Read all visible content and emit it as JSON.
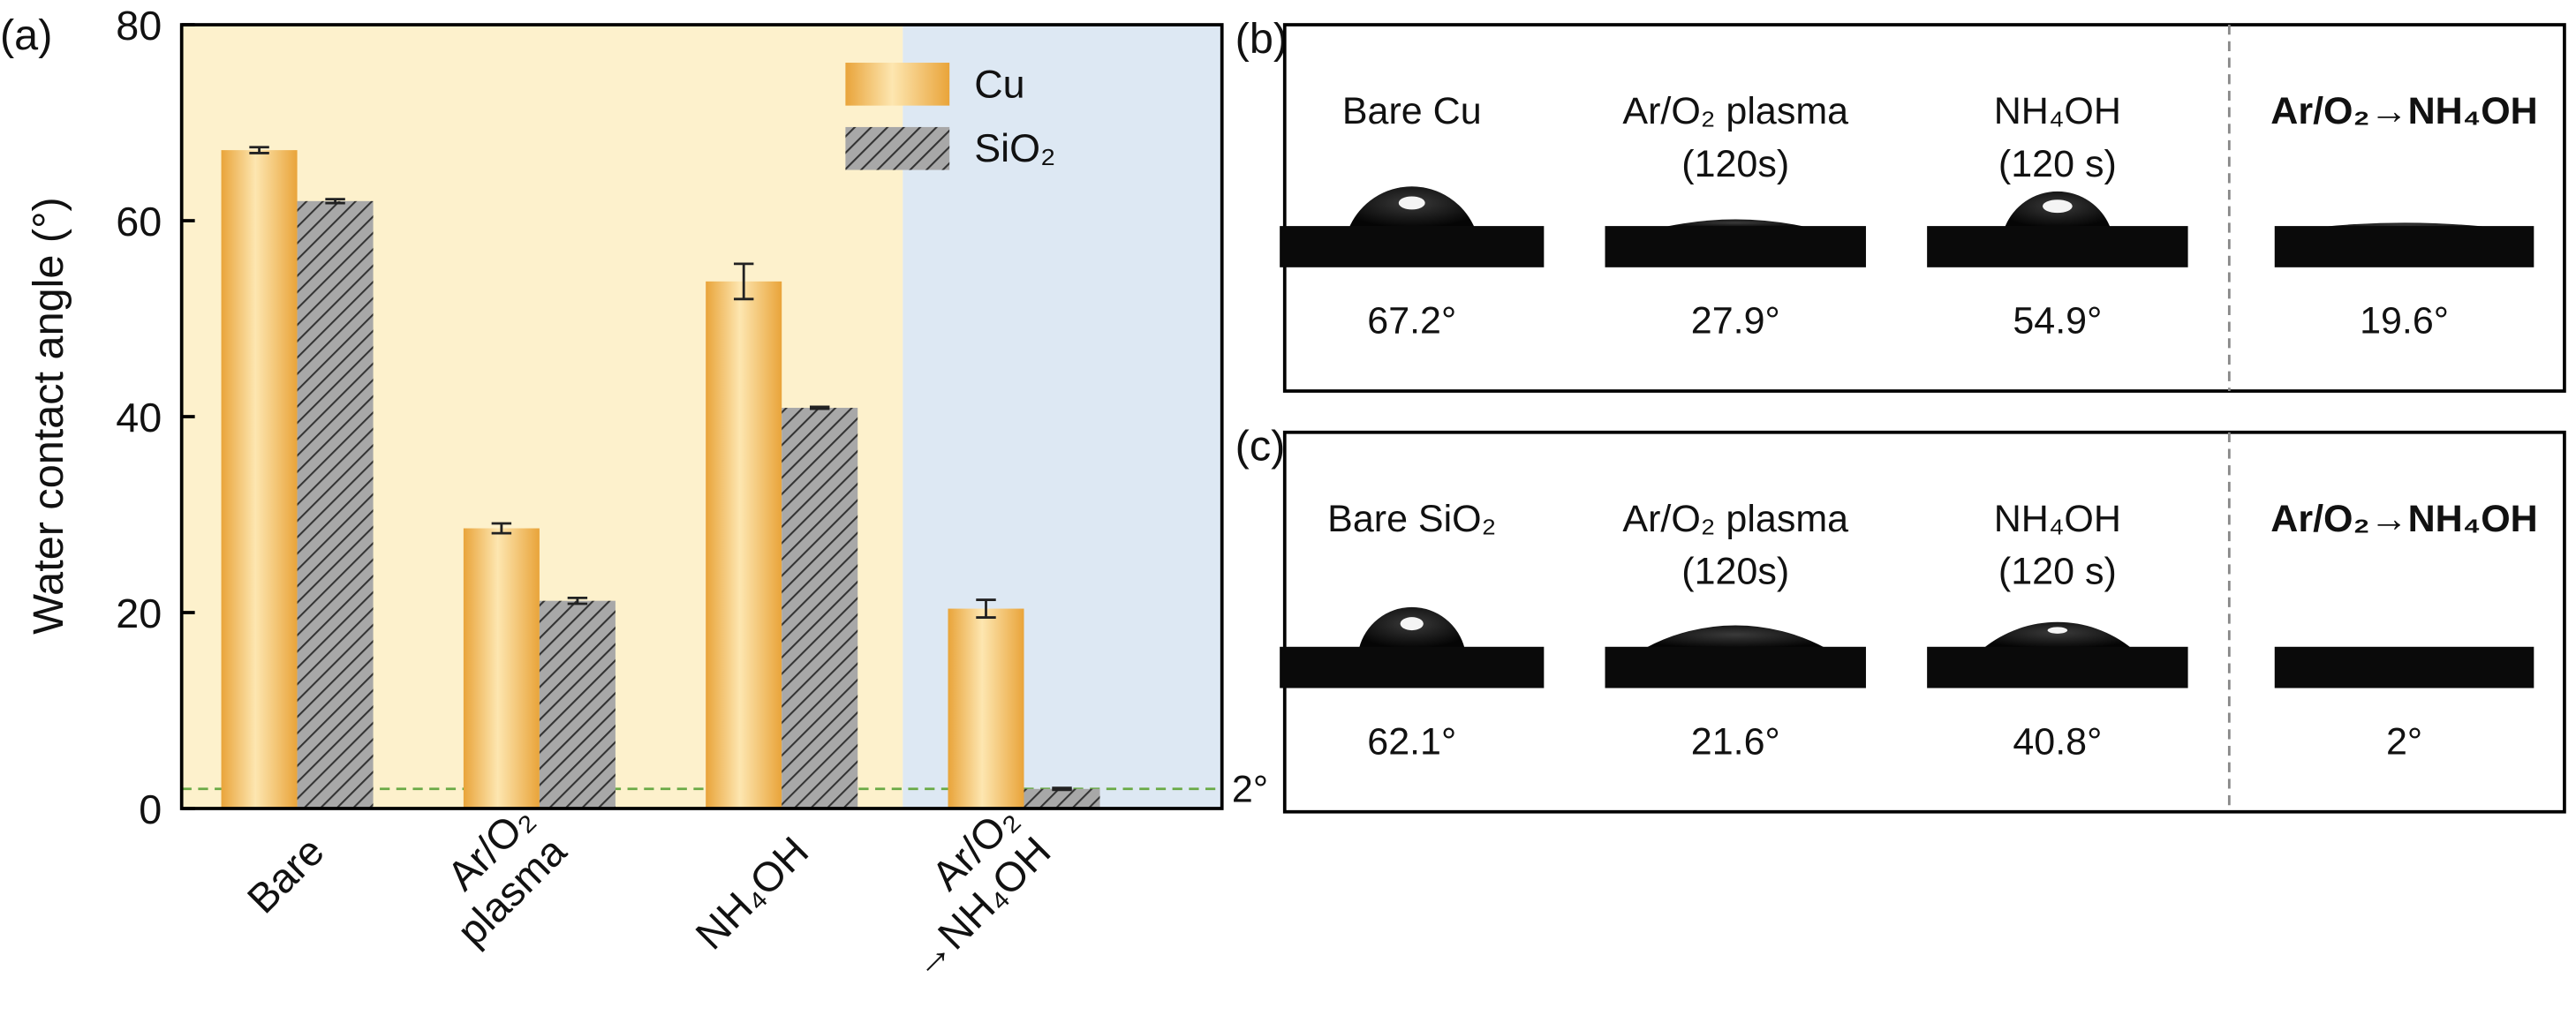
{
  "chart_data": {
    "type": "bar",
    "panel_label": "(a)",
    "ylabel": "Water contact angle (°)",
    "categories": [
      "Bare",
      "Ar/O₂ plasma",
      "NH₄OH",
      "Ar/O₂ →NH₄OH"
    ],
    "series": [
      {
        "name": "Cu",
        "color": "#eeae45",
        "values": [
          67.2,
          28.6,
          53.8,
          20.4
        ],
        "errors": [
          0.3,
          0.5,
          1.8,
          0.9
        ]
      },
      {
        "name": "SiO₂",
        "color": "#9a9a9a",
        "pattern": "hatch",
        "values": [
          62.0,
          21.2,
          40.9,
          2
        ],
        "errors": [
          0.2,
          0.3,
          0.1,
          0.1
        ]
      }
    ],
    "ylim": [
      0,
      80
    ],
    "yticks": [
      0,
      20,
      40,
      60,
      80
    ],
    "reference_line": {
      "value": 2,
      "label": "2°",
      "color": "#6aaa46"
    },
    "legend": "upper right"
  },
  "panels": [
    {
      "label": "(b)",
      "samples": [
        {
          "name": "Bare Cu",
          "angle": "67.2°"
        },
        {
          "name": "Ar/O₂ plasma",
          "time": "(120s)",
          "angle": "27.9°"
        },
        {
          "name": "NH₄OH",
          "time": "(120 s)",
          "angle": "54.9°"
        },
        {
          "name": "Ar/O₂→NH₄OH",
          "angle": "19.6°",
          "color": "#6aaa46"
        }
      ]
    },
    {
      "label": "(c)",
      "samples": [
        {
          "name": "Bare SiO₂",
          "angle": "62.1°"
        },
        {
          "name": "Ar/O₂ plasma",
          "time": "(120s)",
          "angle": "21.6°"
        },
        {
          "name": "NH₄OH",
          "time": "(120 s)",
          "angle": "40.8°"
        },
        {
          "name": "Ar/O₂→NH₄OH",
          "angle": "2°",
          "color": "#6aaa46"
        }
      ]
    }
  ]
}
